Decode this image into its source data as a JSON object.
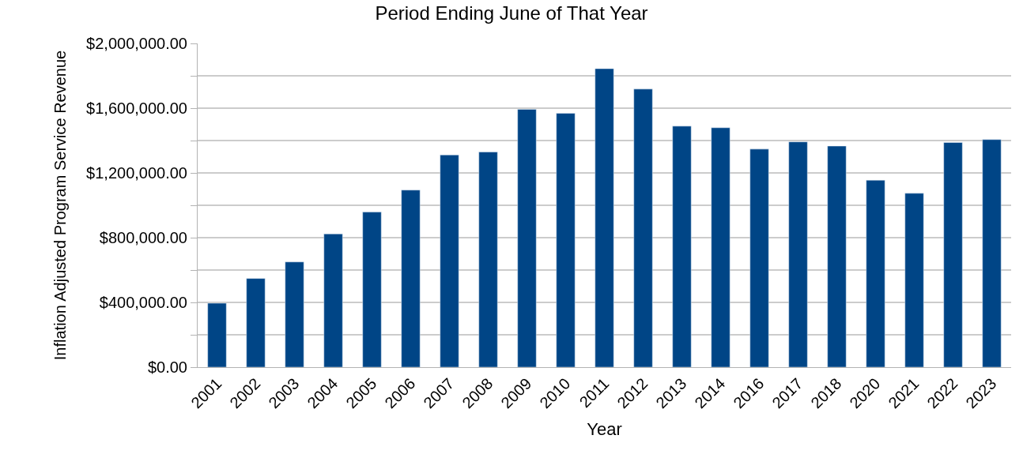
{
  "chart_data": {
    "type": "bar",
    "title": "Period Ending June of That Year",
    "xlabel": "Year",
    "ylabel": "Inflation Adjusted Program Service Revenue",
    "categories": [
      "2001",
      "2002",
      "2003",
      "2004",
      "2005",
      "2006",
      "2007",
      "2008",
      "2009",
      "2010",
      "2011",
      "2012",
      "2013",
      "2014",
      "2016",
      "2017",
      "2018",
      "2020",
      "2021",
      "2022",
      "2023"
    ],
    "values": [
      395000,
      548000,
      650000,
      823000,
      958000,
      1094000,
      1311000,
      1329000,
      1593000,
      1568000,
      1844000,
      1718000,
      1489000,
      1479000,
      1347000,
      1392000,
      1366000,
      1155000,
      1074000,
      1388000,
      1406000
    ],
    "color": "#004586",
    "ylim": [
      0,
      2000000
    ],
    "yticks": [
      {
        "value": 0,
        "label": "$0.00"
      },
      {
        "value": 200000,
        "label": null
      },
      {
        "value": 400000,
        "label": "$400,000.00"
      },
      {
        "value": 600000,
        "label": null
      },
      {
        "value": 800000,
        "label": "$800,000.00"
      },
      {
        "value": 1000000,
        "label": null
      },
      {
        "value": 1200000,
        "label": "$1,200,000.00"
      },
      {
        "value": 1400000,
        "label": null
      },
      {
        "value": 1600000,
        "label": "$1,600,000.00"
      },
      {
        "value": 1800000,
        "label": null
      },
      {
        "value": 2000000,
        "label": "$2,000,000.00"
      }
    ],
    "grid": "y"
  }
}
